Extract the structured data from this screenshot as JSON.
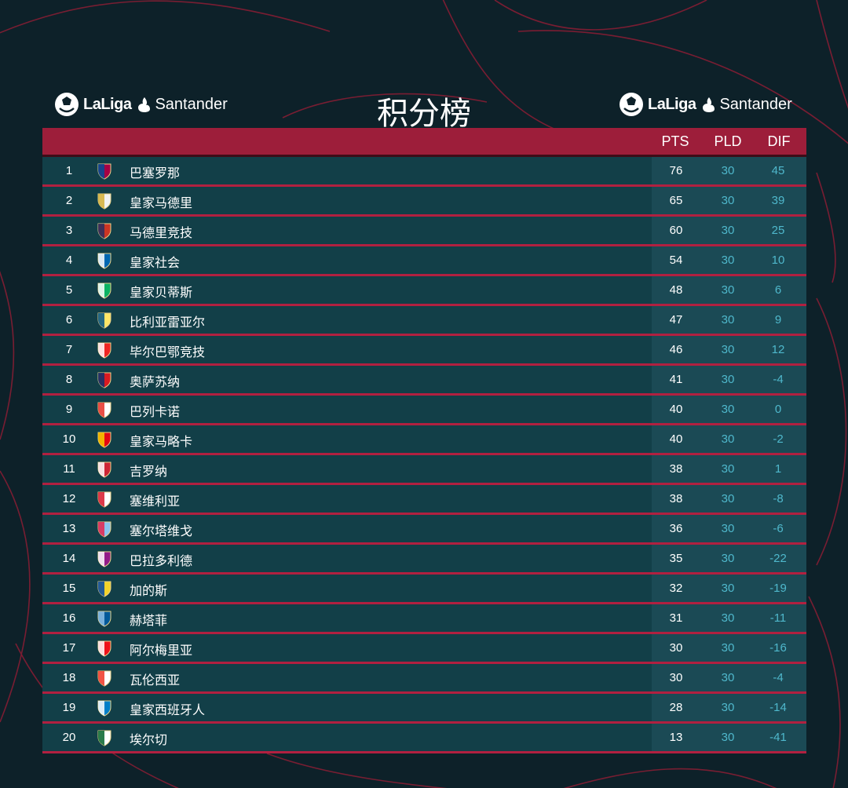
{
  "header": {
    "title": "积分榜",
    "brand_word_1": "LaLiga",
    "brand_word_2": "Santander"
  },
  "columns": {
    "pts": "PTS",
    "pld": "PLD",
    "dif": "DIF"
  },
  "colors": {
    "background": "#0d2129",
    "header_bar": "#9d1e3a",
    "row_bg": "#123f48",
    "row_separator": "#b12040",
    "stat_highlight": "#4fb8cc"
  },
  "rows": [
    {
      "pos": "1",
      "team": "巴塞罗那",
      "pts": "76",
      "pld": "30",
      "dif": "45",
      "crest": "barcelona-crest",
      "c1": "#a50044",
      "c2": "#004d98"
    },
    {
      "pos": "2",
      "team": "皇家马德里",
      "pts": "65",
      "pld": "30",
      "dif": "39",
      "crest": "real-madrid-crest",
      "c1": "#f2f2f2",
      "c2": "#d4af37"
    },
    {
      "pos": "3",
      "team": "马德里竞技",
      "pts": "60",
      "pld": "30",
      "dif": "25",
      "crest": "atletico-madrid-crest",
      "c1": "#cb3524",
      "c2": "#272e61"
    },
    {
      "pos": "4",
      "team": "皇家社会",
      "pts": "54",
      "pld": "30",
      "dif": "10",
      "crest": "real-sociedad-crest",
      "c1": "#0067b1",
      "c2": "#ffffff"
    },
    {
      "pos": "5",
      "team": "皇家贝蒂斯",
      "pts": "48",
      "pld": "30",
      "dif": "6",
      "crest": "real-betis-crest",
      "c1": "#0bb363",
      "c2": "#ffffff"
    },
    {
      "pos": "6",
      "team": "比利亚雷亚尔",
      "pts": "47",
      "pld": "30",
      "dif": "9",
      "crest": "villarreal-crest",
      "c1": "#ffe667",
      "c2": "#005187"
    },
    {
      "pos": "7",
      "team": "毕尔巴鄂竞技",
      "pts": "46",
      "pld": "30",
      "dif": "12",
      "crest": "athletic-bilbao-crest",
      "c1": "#ee2523",
      "c2": "#ffffff"
    },
    {
      "pos": "8",
      "team": "奥萨苏纳",
      "pts": "41",
      "pld": "30",
      "dif": "-4",
      "crest": "osasuna-crest",
      "c1": "#d91a21",
      "c2": "#0a346f"
    },
    {
      "pos": "9",
      "team": "巴列卡诺",
      "pts": "40",
      "pld": "30",
      "dif": "0",
      "crest": "rayo-vallecano-crest",
      "c1": "#ffffff",
      "c2": "#e53027"
    },
    {
      "pos": "10",
      "team": "皇家马略卡",
      "pts": "40",
      "pld": "30",
      "dif": "-2",
      "crest": "mallorca-crest",
      "c1": "#e20613",
      "c2": "#f4d000"
    },
    {
      "pos": "11",
      "team": "吉罗纳",
      "pts": "38",
      "pld": "30",
      "dif": "1",
      "crest": "girona-crest",
      "c1": "#cd2534",
      "c2": "#ffffff"
    },
    {
      "pos": "12",
      "team": "塞维利亚",
      "pts": "38",
      "pld": "30",
      "dif": "-8",
      "crest": "sevilla-crest",
      "c1": "#ffffff",
      "c2": "#d7182a"
    },
    {
      "pos": "13",
      "team": "塞尔塔维戈",
      "pts": "36",
      "pld": "30",
      "dif": "-6",
      "crest": "celta-vigo-crest",
      "c1": "#8ac3ee",
      "c2": "#e5254e"
    },
    {
      "pos": "14",
      "team": "巴拉多利德",
      "pts": "35",
      "pld": "30",
      "dif": "-22",
      "crest": "valladolid-crest",
      "c1": "#921b88",
      "c2": "#ffffff"
    },
    {
      "pos": "15",
      "team": "加的斯",
      "pts": "32",
      "pld": "30",
      "dif": "-19",
      "crest": "cadiz-crest",
      "c1": "#f4d32a",
      "c2": "#0045a7"
    },
    {
      "pos": "16",
      "team": "赫塔菲",
      "pts": "31",
      "pld": "30",
      "dif": "-11",
      "crest": "getafe-crest",
      "c1": "#005999",
      "c2": "#8fc1e6"
    },
    {
      "pos": "17",
      "team": "阿尔梅里亚",
      "pts": "30",
      "pld": "30",
      "dif": "-16",
      "crest": "almeria-crest",
      "c1": "#ee1119",
      "c2": "#ffffff"
    },
    {
      "pos": "18",
      "team": "瓦伦西亚",
      "pts": "30",
      "pld": "30",
      "dif": "-4",
      "crest": "valencia-crest",
      "c1": "#ffffff",
      "c2": "#ee3524"
    },
    {
      "pos": "19",
      "team": "皇家西班牙人",
      "pts": "28",
      "pld": "30",
      "dif": "-14",
      "crest": "espanyol-crest",
      "c1": "#007fc8",
      "c2": "#ffffff"
    },
    {
      "pos": "20",
      "team": "埃尔切",
      "pts": "13",
      "pld": "30",
      "dif": "-41",
      "crest": "elche-crest",
      "c1": "#ffffff",
      "c2": "#05642c"
    }
  ]
}
